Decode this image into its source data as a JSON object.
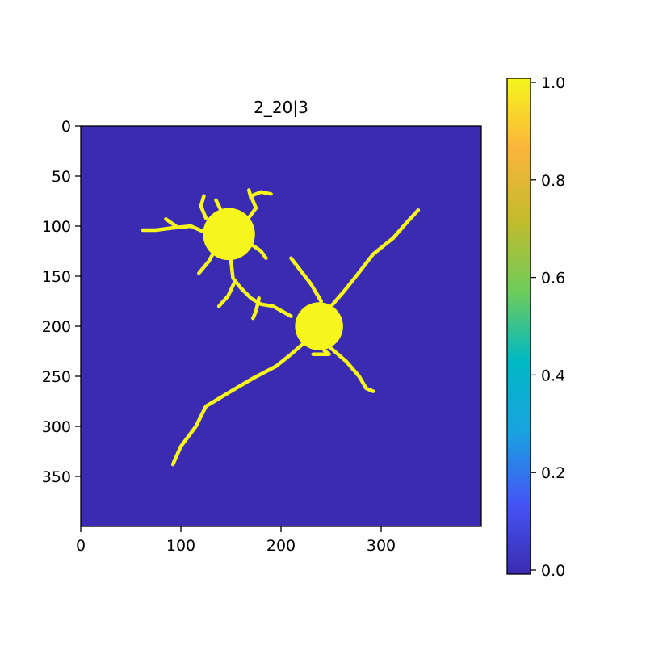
{
  "chart_data": {
    "type": "heatmap",
    "title": "2_20|3",
    "xlabel": "",
    "ylabel": "",
    "image_size": [
      400,
      400
    ],
    "background_value": 0.0,
    "foreground_value": 1.0,
    "xlim": [
      0,
      400
    ],
    "ylim": [
      400,
      0
    ],
    "x_ticks": [
      0,
      100,
      200,
      300
    ],
    "x_tick_labels": [
      "0",
      "100",
      "200",
      "300"
    ],
    "y_ticks": [
      0,
      50,
      100,
      150,
      200,
      250,
      300,
      350
    ],
    "y_tick_labels": [
      "0",
      "50",
      "100",
      "150",
      "200",
      "250",
      "300",
      "350"
    ],
    "colorbar": {
      "range": [
        0.0,
        1.0
      ],
      "ticks": [
        0.0,
        0.2,
        0.4,
        0.6,
        0.8,
        1.0
      ],
      "tick_labels": [
        "0.0",
        "0.2",
        "0.4",
        "0.6",
        "0.8",
        "1.0"
      ]
    },
    "colors": {
      "background": "#3b2bb0",
      "foreground": "#f6f51c",
      "colormap_stops": [
        "#3b2bb0",
        "#4455f5",
        "#1aa2e0",
        "#00b8c4",
        "#6fcc5a",
        "#c3bb2c",
        "#fbb43c",
        "#f6f51c"
      ]
    },
    "cells": [
      {
        "name": "soma",
        "center": [
          148,
          108
        ],
        "radius": 26
      },
      {
        "name": "soma",
        "center": [
          238,
          200
        ],
        "radius": 24
      }
    ],
    "processes": [
      [
        [
          128,
          108
        ],
        [
          110,
          100
        ],
        [
          90,
          102
        ],
        [
          75,
          104
        ],
        [
          62,
          104
        ]
      ],
      [
        [
          95,
          100
        ],
        [
          85,
          93
        ]
      ],
      [
        [
          125,
          92
        ],
        [
          120,
          80
        ],
        [
          123,
          70
        ]
      ],
      [
        [
          140,
          84
        ],
        [
          135,
          74
        ]
      ],
      [
        [
          166,
          94
        ],
        [
          175,
          82
        ],
        [
          170,
          70
        ],
        [
          180,
          66
        ],
        [
          190,
          68
        ]
      ],
      [
        [
          170,
          72
        ],
        [
          168,
          64
        ]
      ],
      [
        [
          170,
          118
        ],
        [
          180,
          125
        ],
        [
          185,
          132
        ]
      ],
      [
        [
          134,
          124
        ],
        [
          128,
          135
        ],
        [
          118,
          147
        ]
      ],
      [
        [
          150,
          134
        ],
        [
          152,
          152
        ],
        [
          160,
          162
        ],
        [
          170,
          172
        ],
        [
          180,
          178
        ],
        [
          192,
          180
        ],
        [
          210,
          190
        ]
      ],
      [
        [
          154,
          155
        ],
        [
          147,
          170
        ],
        [
          138,
          180
        ]
      ],
      [
        [
          178,
          172
        ],
        [
          175,
          185
        ],
        [
          172,
          192
        ]
      ],
      [
        [
          240,
          175
        ],
        [
          230,
          158
        ],
        [
          220,
          145
        ],
        [
          210,
          132
        ]
      ],
      [
        [
          250,
          180
        ],
        [
          263,
          165
        ],
        [
          275,
          150
        ],
        [
          292,
          128
        ],
        [
          312,
          112
        ],
        [
          326,
          96
        ],
        [
          337,
          84
        ]
      ],
      [
        [
          250,
          222
        ],
        [
          265,
          235
        ],
        [
          278,
          250
        ],
        [
          285,
          262
        ],
        [
          292,
          265
        ]
      ],
      [
        [
          225,
          215
        ],
        [
          210,
          228
        ],
        [
          195,
          240
        ],
        [
          172,
          252
        ],
        [
          150,
          265
        ],
        [
          125,
          280
        ],
        [
          115,
          300
        ],
        [
          100,
          320
        ],
        [
          92,
          338
        ]
      ],
      [
        [
          243,
          224
        ],
        [
          248,
          228
        ],
        [
          232,
          228
        ]
      ],
      [
        [
          240,
          175
        ],
        [
          236,
          168
        ]
      ]
    ]
  }
}
